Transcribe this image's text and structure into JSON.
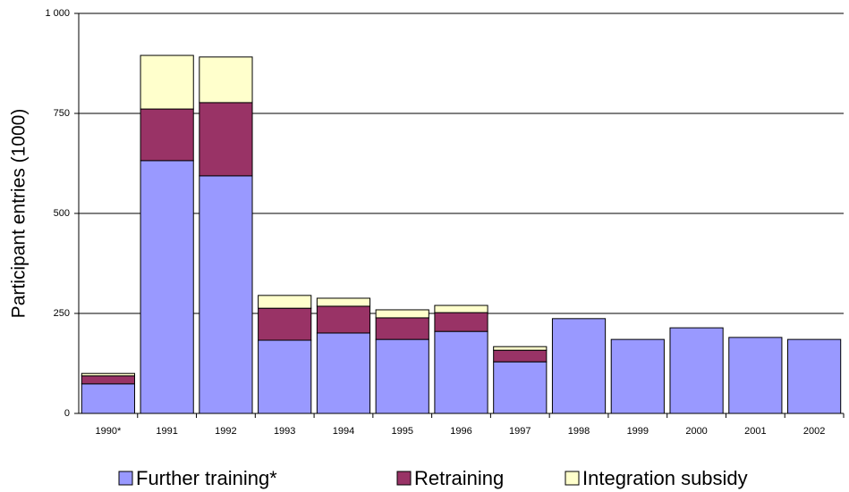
{
  "chart_data": {
    "type": "bar",
    "stacked": true,
    "y_label": "Participant entries (1000)",
    "categories": [
      "1990*",
      "1991",
      "1992",
      "1993",
      "1994",
      "1995",
      "1996",
      "1997",
      "1998",
      "1999",
      "2000",
      "2001",
      "2002"
    ],
    "series": [
      {
        "name": "Further training*",
        "color": "#9999ff",
        "values": [
          74,
          632,
          594,
          183,
          201,
          185,
          205,
          129,
          237,
          185,
          214,
          190,
          185
        ]
      },
      {
        "name": "Retraining",
        "color": "#993366",
        "values": [
          20,
          129,
          183,
          80,
          67,
          54,
          47,
          29,
          null,
          null,
          null,
          null,
          null
        ]
      },
      {
        "name": "Integration subsidy",
        "color": "#ffffcc",
        "values": [
          6,
          134,
          114,
          32,
          20,
          20,
          18,
          9,
          null,
          null,
          null,
          null,
          null
        ]
      }
    ],
    "ylim": [
      0,
      1000
    ],
    "yticks": [
      0,
      250,
      500,
      750,
      {
        "value": 1000,
        "label": "1 000"
      }
    ],
    "grid": true
  }
}
